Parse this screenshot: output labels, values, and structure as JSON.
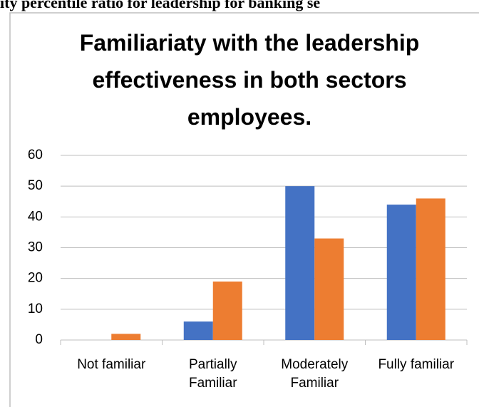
{
  "caption": "ity percentile ratio for leadership for banking se",
  "chart_data": {
    "type": "bar",
    "title": "Familiariaty with the leadership effectiveness in both sectors employees.",
    "categories": [
      "Not familiar",
      "Partially Familiar",
      "Moderately Familiar",
      "Fully familiar"
    ],
    "series": [
      {
        "color": "#4472c4",
        "values": [
          0,
          6,
          50,
          44
        ]
      },
      {
        "color": "#ed7d31",
        "values": [
          2,
          19,
          33,
          46
        ]
      }
    ],
    "ylim": [
      0,
      60
    ],
    "yticks": [
      0,
      10,
      20,
      30,
      40,
      50,
      60
    ],
    "grid": true
  }
}
